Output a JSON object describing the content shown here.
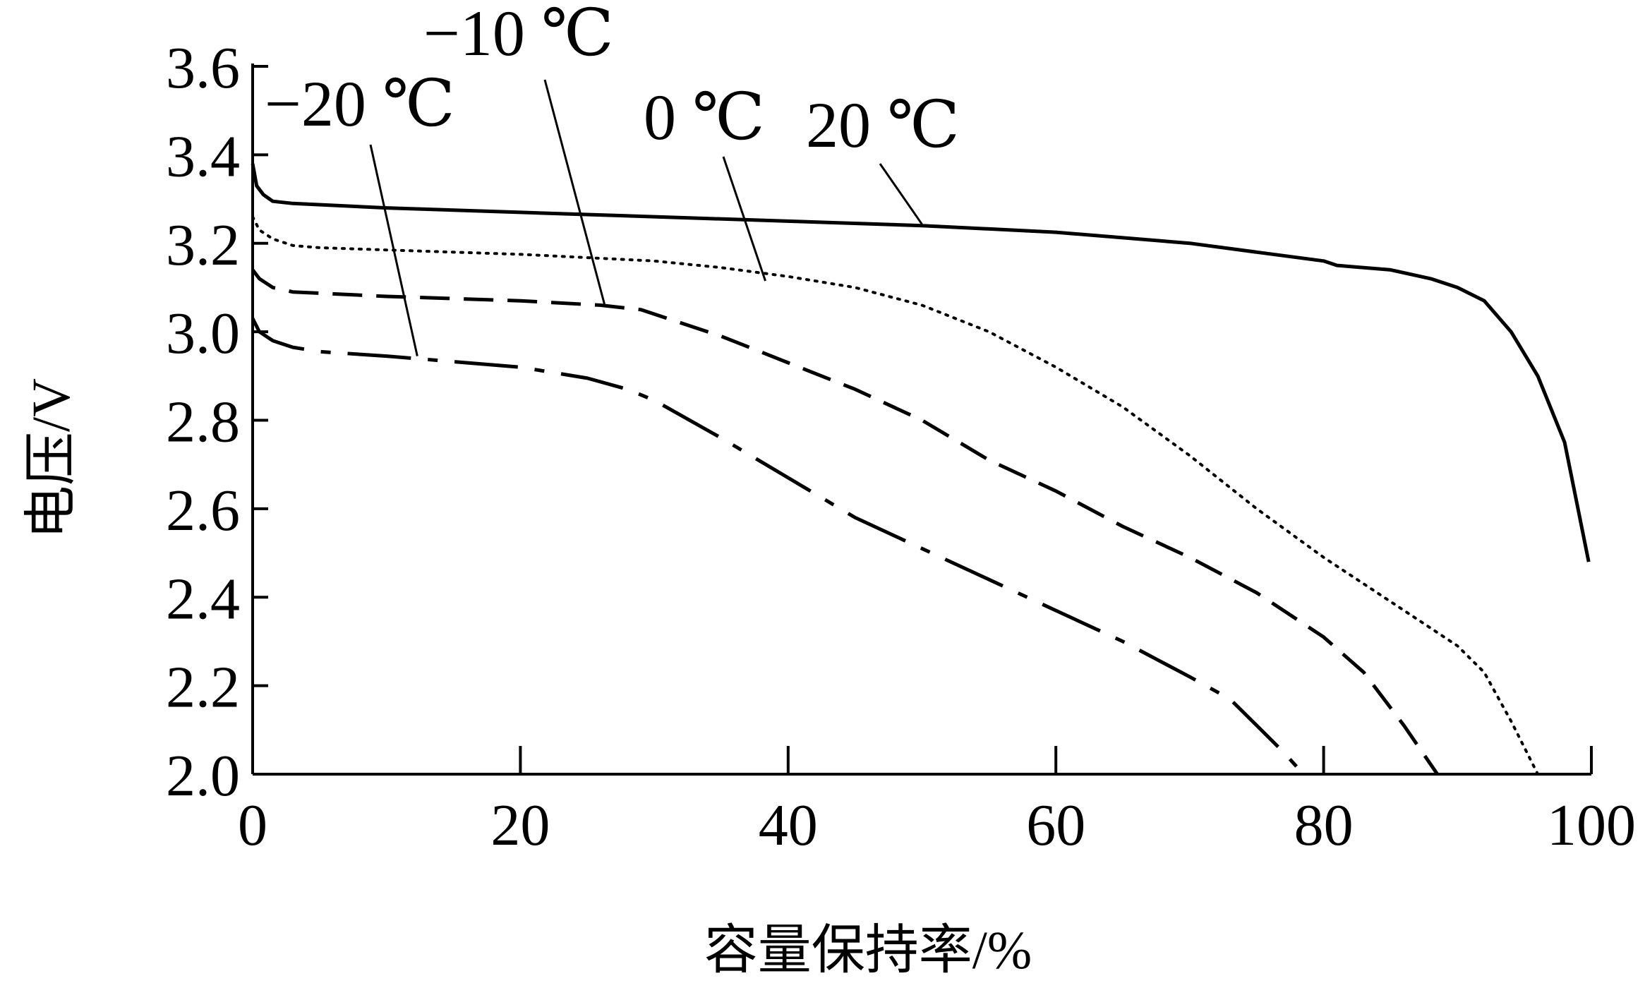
{
  "chart_data": {
    "type": "line",
    "xlabel": "容量保持率/%",
    "ylabel": "电压/V",
    "xlim": [
      0,
      100
    ],
    "ylim": [
      2.0,
      3.6
    ],
    "xticks": [
      0,
      20,
      40,
      60,
      80,
      100
    ],
    "xtick_labels": [
      "0",
      "20",
      "40",
      "60",
      "80",
      "100"
    ],
    "yticks": [
      2.0,
      2.2,
      2.4,
      2.6,
      2.8,
      3.0,
      3.2,
      3.4,
      3.6
    ],
    "ytick_labels": [
      "2.0",
      "2.2",
      "2.4",
      "2.6",
      "2.8",
      "3.0",
      "3.2",
      "3.4",
      "3.6"
    ],
    "grid": false,
    "legend": "none",
    "series": [
      {
        "name": "20 ℃",
        "style": "solid",
        "x": [
          0,
          0.3,
          0.8,
          1.5,
          3,
          10,
          20,
          30,
          40,
          50,
          60,
          70,
          75,
          80,
          81,
          85,
          88,
          90,
          92,
          94,
          96,
          98,
          99.8
        ],
        "y": [
          3.38,
          3.33,
          3.31,
          3.295,
          3.29,
          3.28,
          3.27,
          3.26,
          3.25,
          3.24,
          3.225,
          3.2,
          3.18,
          3.16,
          3.15,
          3.14,
          3.12,
          3.1,
          3.07,
          3.0,
          2.9,
          2.75,
          2.48
        ]
      },
      {
        "name": "0 ℃",
        "style": "dotted",
        "x": [
          0,
          0.5,
          1.5,
          3,
          5,
          10,
          20,
          30,
          35,
          40,
          45,
          50,
          55,
          60,
          65,
          70,
          75,
          80,
          85,
          88,
          90,
          92,
          94,
          96
        ],
        "y": [
          3.26,
          3.23,
          3.21,
          3.195,
          3.19,
          3.185,
          3.175,
          3.16,
          3.145,
          3.125,
          3.1,
          3.06,
          3.0,
          2.92,
          2.83,
          2.72,
          2.6,
          2.49,
          2.39,
          2.33,
          2.29,
          2.23,
          2.12,
          2.0
        ]
      },
      {
        "name": "−10 ℃",
        "style": "dashed",
        "x": [
          0,
          0.5,
          1.5,
          3,
          10,
          20,
          26,
          29,
          32,
          35,
          40,
          45,
          50,
          55,
          60,
          65,
          70,
          75,
          80,
          83,
          86,
          88.5
        ],
        "y": [
          3.14,
          3.12,
          3.1,
          3.09,
          3.08,
          3.07,
          3.06,
          3.05,
          3.02,
          2.99,
          2.93,
          2.87,
          2.8,
          2.71,
          2.64,
          2.56,
          2.49,
          2.41,
          2.31,
          2.23,
          2.11,
          2.0
        ]
      },
      {
        "name": "−20 ℃",
        "style": "dashdot",
        "x": [
          0,
          0.5,
          1.5,
          3,
          5,
          10,
          20,
          25,
          28,
          30,
          35,
          40,
          45,
          50,
          55,
          60,
          65,
          70,
          73,
          75,
          77,
          78.5
        ],
        "y": [
          3.03,
          3.0,
          2.98,
          2.965,
          2.955,
          2.945,
          2.92,
          2.895,
          2.87,
          2.845,
          2.76,
          2.67,
          2.58,
          2.51,
          2.44,
          2.37,
          2.3,
          2.22,
          2.17,
          2.11,
          2.05,
          2.0
        ]
      }
    ],
    "annotations": [
      {
        "text": "20 ℃",
        "series": "20 ℃",
        "x": 50,
        "y": 3.243
      },
      {
        "text": "0 ℃",
        "series": "0 ℃",
        "x": 38.3,
        "y": 3.115
      },
      {
        "text": "−10 ℃",
        "series": "−10 ℃",
        "x": 26.3,
        "y": 3.06
      },
      {
        "text": "−20 ℃",
        "series": "−20 ℃",
        "x": 12.3,
        "y": 2.945
      }
    ]
  }
}
